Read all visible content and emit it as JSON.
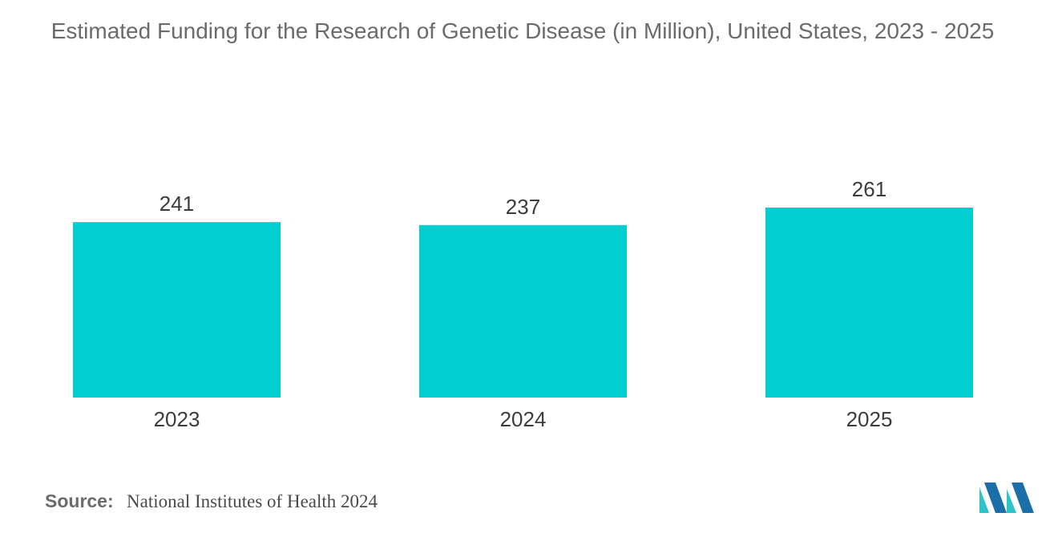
{
  "colors": {
    "bar": "#00CED1",
    "logo_dark": "#1b6fa8",
    "logo_light": "#2cc3c9"
  },
  "header": {
    "title": "Estimated Funding for the Research of Genetic Disease (in Million), United States, 2023 - 2025"
  },
  "chart_data": {
    "type": "bar",
    "title": "Estimated Funding for the Research of Genetic Disease (in Million), United States, 2023 - 2025",
    "categories": [
      "2023",
      "2024",
      "2025"
    ],
    "values": [
      241,
      237,
      261
    ],
    "data_labels": [
      "241",
      "237",
      "261"
    ],
    "xlabel": "",
    "ylabel": "",
    "ylim": [
      0,
      261
    ],
    "grid": false,
    "legend": "none"
  },
  "footer": {
    "source_key": "Source:",
    "source_value": "National Institutes of Health 2024"
  },
  "logo": {
    "icon": "mordor-intelligence-logo"
  }
}
